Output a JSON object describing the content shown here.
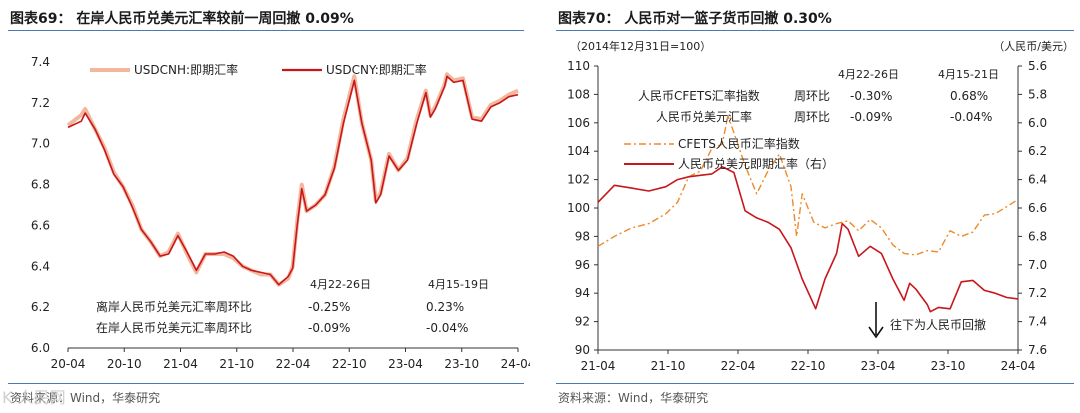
{
  "left": {
    "title": "图表69：  在岸人民币兑美元汇率较前一周回撤 0.09%",
    "source": "资料来源：Wind，华泰研究",
    "chart_data": {
      "type": "line",
      "x_ticks": [
        "20-04",
        "20-10",
        "21-04",
        "21-10",
        "22-04",
        "22-10",
        "23-04",
        "23-10",
        "24-04"
      ],
      "ylim": [
        6.0,
        7.4
      ],
      "y_ticks": [
        "6.0",
        "6.2",
        "6.4",
        "6.6",
        "6.8",
        "7.0",
        "7.2",
        "7.4"
      ],
      "grid": false,
      "legend": "top",
      "x_date_range": [
        "2020-04-01",
        "2024-04-30"
      ],
      "series": [
        {
          "name": "USDCNH:即期汇率",
          "color": "#f2b79c",
          "points": [
            [
              "2020-04-01",
              7.09
            ],
            [
              "2020-05-15",
              7.14
            ],
            [
              "2020-05-28",
              7.17
            ],
            [
              "2020-06-30",
              7.07
            ],
            [
              "2020-07-31",
              6.98
            ],
            [
              "2020-08-31",
              6.86
            ],
            [
              "2020-09-30",
              6.79
            ],
            [
              "2020-10-31",
              6.7
            ],
            [
              "2020-11-30",
              6.58
            ],
            [
              "2020-12-31",
              6.52
            ],
            [
              "2021-01-31",
              6.45
            ],
            [
              "2021-02-28",
              6.47
            ],
            [
              "2021-03-31",
              6.56
            ],
            [
              "2021-04-30",
              6.46
            ],
            [
              "2021-05-31",
              6.37
            ],
            [
              "2021-06-30",
              6.46
            ],
            [
              "2021-07-31",
              6.46
            ],
            [
              "2021-08-31",
              6.46
            ],
            [
              "2021-09-30",
              6.44
            ],
            [
              "2021-10-31",
              6.4
            ],
            [
              "2021-11-30",
              6.38
            ],
            [
              "2021-12-31",
              6.36
            ],
            [
              "2022-01-31",
              6.36
            ],
            [
              "2022-02-28",
              6.31
            ],
            [
              "2022-03-31",
              6.34
            ],
            [
              "2022-04-15",
              6.4
            ],
            [
              "2022-04-30",
              6.62
            ],
            [
              "2022-05-15",
              6.8
            ],
            [
              "2022-05-31",
              6.67
            ],
            [
              "2022-06-30",
              6.7
            ],
            [
              "2022-07-31",
              6.75
            ],
            [
              "2022-08-31",
              6.89
            ],
            [
              "2022-09-30",
              7.12
            ],
            [
              "2022-10-31",
              7.3
            ],
            [
              "2022-11-05",
              7.33
            ],
            [
              "2022-11-30",
              7.1
            ],
            [
              "2022-12-31",
              6.92
            ],
            [
              "2023-01-15",
              6.72
            ],
            [
              "2023-01-31",
              6.76
            ],
            [
              "2023-02-28",
              6.95
            ],
            [
              "2023-03-31",
              6.87
            ],
            [
              "2023-04-30",
              6.93
            ],
            [
              "2023-05-31",
              7.12
            ],
            [
              "2023-06-30",
              7.26
            ],
            [
              "2023-07-15",
              7.14
            ],
            [
              "2023-07-31",
              7.18
            ],
            [
              "2023-08-31",
              7.29
            ],
            [
              "2023-09-08",
              7.34
            ],
            [
              "2023-09-30",
              7.31
            ],
            [
              "2023-10-31",
              7.32
            ],
            [
              "2023-11-30",
              7.13
            ],
            [
              "2023-12-31",
              7.12
            ],
            [
              "2024-01-31",
              7.19
            ],
            [
              "2024-02-29",
              7.21
            ],
            [
              "2024-03-31",
              7.24
            ],
            [
              "2024-04-30",
              7.26
            ]
          ]
        },
        {
          "name": "USDCNY:即期汇率",
          "color": "#c8161d",
          "points": [
            [
              "2020-04-01",
              7.08
            ],
            [
              "2020-05-15",
              7.11
            ],
            [
              "2020-05-28",
              7.15
            ],
            [
              "2020-06-30",
              7.07
            ],
            [
              "2020-07-31",
              6.97
            ],
            [
              "2020-08-31",
              6.85
            ],
            [
              "2020-09-30",
              6.79
            ],
            [
              "2020-10-31",
              6.69
            ],
            [
              "2020-11-30",
              6.58
            ],
            [
              "2020-12-31",
              6.52
            ],
            [
              "2021-01-31",
              6.45
            ],
            [
              "2021-02-28",
              6.46
            ],
            [
              "2021-03-31",
              6.55
            ],
            [
              "2021-04-30",
              6.47
            ],
            [
              "2021-05-31",
              6.38
            ],
            [
              "2021-06-30",
              6.46
            ],
            [
              "2021-07-31",
              6.46
            ],
            [
              "2021-08-31",
              6.47
            ],
            [
              "2021-09-30",
              6.45
            ],
            [
              "2021-10-31",
              6.4
            ],
            [
              "2021-11-30",
              6.38
            ],
            [
              "2021-12-31",
              6.37
            ],
            [
              "2022-01-31",
              6.36
            ],
            [
              "2022-02-28",
              6.31
            ],
            [
              "2022-03-31",
              6.35
            ],
            [
              "2022-04-15",
              6.39
            ],
            [
              "2022-04-30",
              6.6
            ],
            [
              "2022-05-15",
              6.78
            ],
            [
              "2022-05-31",
              6.67
            ],
            [
              "2022-06-30",
              6.7
            ],
            [
              "2022-07-31",
              6.75
            ],
            [
              "2022-08-31",
              6.88
            ],
            [
              "2022-09-30",
              7.1
            ],
            [
              "2022-10-31",
              7.28
            ],
            [
              "2022-11-05",
              7.31
            ],
            [
              "2022-11-30",
              7.1
            ],
            [
              "2022-12-31",
              6.92
            ],
            [
              "2023-01-15",
              6.71
            ],
            [
              "2023-01-31",
              6.75
            ],
            [
              "2023-02-28",
              6.94
            ],
            [
              "2023-03-31",
              6.87
            ],
            [
              "2023-04-30",
              6.92
            ],
            [
              "2023-05-31",
              7.1
            ],
            [
              "2023-06-30",
              7.25
            ],
            [
              "2023-07-15",
              7.13
            ],
            [
              "2023-07-31",
              7.17
            ],
            [
              "2023-08-31",
              7.28
            ],
            [
              "2023-09-08",
              7.33
            ],
            [
              "2023-09-30",
              7.3
            ],
            [
              "2023-10-31",
              7.31
            ],
            [
              "2023-11-30",
              7.12
            ],
            [
              "2023-12-31",
              7.11
            ],
            [
              "2024-01-31",
              7.18
            ],
            [
              "2024-02-29",
              7.2
            ],
            [
              "2024-03-31",
              7.23
            ],
            [
              "2024-04-30",
              7.24
            ]
          ]
        }
      ],
      "table": {
        "col_headers": [
          "4月22-26日",
          "4月15-19日"
        ],
        "rows": [
          {
            "label": "离岸人民币兑美元汇率周环比",
            "values": [
              "-0.25%",
              "0.23%"
            ]
          },
          {
            "label": "在岸人民币兑美元汇率周环比",
            "values": [
              "-0.09%",
              "-0.04%"
            ]
          }
        ]
      }
    }
  },
  "right": {
    "title": "图表70：  人民币对一篮子货币回撤 0.30%",
    "source": "资料来源：Wind，华泰研究",
    "chart_data": {
      "type": "line",
      "left_note": "（2014年12月31日=100）",
      "right_note": "（人民币/美元）",
      "x_ticks": [
        "21-04",
        "21-10",
        "22-04",
        "22-10",
        "23-04",
        "23-10",
        "24-04"
      ],
      "x_date_range": [
        "2021-04-01",
        "2024-04-30"
      ],
      "y_left": {
        "range": [
          90,
          110
        ],
        "ticks": [
          "90",
          "92",
          "94",
          "96",
          "98",
          "100",
          "102",
          "104",
          "106",
          "108",
          "110"
        ]
      },
      "y_right": {
        "range": [
          5.6,
          7.6
        ],
        "inverted": true,
        "ticks": [
          "5.6",
          "5.8",
          "6.0",
          "6.2",
          "6.4",
          "6.6",
          "6.8",
          "7.0",
          "7.2",
          "7.4",
          "7.6"
        ]
      },
      "grid": false,
      "series": [
        {
          "name": "CFETS人民币汇率指数",
          "axis": "left",
          "style": "dashdot",
          "color": "#ee8a2a",
          "points": [
            [
              "2021-04-01",
              97.3
            ],
            [
              "2021-05-15",
              98.0
            ],
            [
              "2021-06-30",
              98.6
            ],
            [
              "2021-08-15",
              98.9
            ],
            [
              "2021-09-30",
              99.6
            ],
            [
              "2021-10-31",
              100.4
            ],
            [
              "2021-11-30",
              102.2
            ],
            [
              "2021-12-31",
              102.6
            ],
            [
              "2022-01-31",
              104.2
            ],
            [
              "2022-02-28",
              104.5
            ],
            [
              "2022-03-15",
              106.5
            ],
            [
              "2022-03-31",
              105.3
            ],
            [
              "2022-04-30",
              103.0
            ],
            [
              "2022-05-31",
              101.0
            ],
            [
              "2022-06-30",
              102.6
            ],
            [
              "2022-07-31",
              103.8
            ],
            [
              "2022-08-31",
              101.5
            ],
            [
              "2022-09-15",
              98.0
            ],
            [
              "2022-09-30",
              101.0
            ],
            [
              "2022-10-31",
              99.0
            ],
            [
              "2022-11-30",
              98.6
            ],
            [
              "2022-12-31",
              98.9
            ],
            [
              "2023-01-31",
              99.1
            ],
            [
              "2023-02-28",
              98.4
            ],
            [
              "2023-03-31",
              99.2
            ],
            [
              "2023-04-30",
              98.6
            ],
            [
              "2023-05-31",
              97.4
            ],
            [
              "2023-06-30",
              96.8
            ],
            [
              "2023-07-31",
              96.7
            ],
            [
              "2023-08-31",
              97.0
            ],
            [
              "2023-09-30",
              96.9
            ],
            [
              "2023-10-31",
              98.4
            ],
            [
              "2023-11-30",
              98.0
            ],
            [
              "2023-12-31",
              98.3
            ],
            [
              "2024-01-31",
              99.5
            ],
            [
              "2024-02-29",
              99.6
            ],
            [
              "2024-03-31",
              100.1
            ],
            [
              "2024-04-30",
              100.6
            ]
          ]
        },
        {
          "name": "人民币兑美元即期汇率（右）",
          "axis": "right",
          "style": "solid",
          "color": "#c8161d",
          "points": [
            [
              "2021-04-01",
              6.56
            ],
            [
              "2021-05-15",
              6.44
            ],
            [
              "2021-06-30",
              6.46
            ],
            [
              "2021-08-15",
              6.48
            ],
            [
              "2021-09-30",
              6.45
            ],
            [
              "2021-10-31",
              6.4
            ],
            [
              "2021-11-30",
              6.38
            ],
            [
              "2021-12-31",
              6.37
            ],
            [
              "2022-01-31",
              6.36
            ],
            [
              "2022-02-28",
              6.31
            ],
            [
              "2022-03-31",
              6.35
            ],
            [
              "2022-04-30",
              6.62
            ],
            [
              "2022-05-31",
              6.67
            ],
            [
              "2022-06-30",
              6.7
            ],
            [
              "2022-07-31",
              6.75
            ],
            [
              "2022-08-31",
              6.88
            ],
            [
              "2022-09-30",
              7.1
            ],
            [
              "2022-10-31",
              7.28
            ],
            [
              "2022-11-05",
              7.31
            ],
            [
              "2022-11-30",
              7.1
            ],
            [
              "2022-12-31",
              6.92
            ],
            [
              "2023-01-15",
              6.71
            ],
            [
              "2023-01-31",
              6.75
            ],
            [
              "2023-02-28",
              6.94
            ],
            [
              "2023-03-31",
              6.87
            ],
            [
              "2023-04-30",
              6.92
            ],
            [
              "2023-05-31",
              7.1
            ],
            [
              "2023-06-30",
              7.25
            ],
            [
              "2023-07-15",
              7.13
            ],
            [
              "2023-07-31",
              7.17
            ],
            [
              "2023-08-31",
              7.28
            ],
            [
              "2023-09-08",
              7.33
            ],
            [
              "2023-09-30",
              7.3
            ],
            [
              "2023-10-31",
              7.31
            ],
            [
              "2023-11-30",
              7.12
            ],
            [
              "2023-12-31",
              7.11
            ],
            [
              "2024-01-31",
              7.18
            ],
            [
              "2024-02-29",
              7.2
            ],
            [
              "2024-03-31",
              7.23
            ],
            [
              "2024-04-30",
              7.24
            ]
          ]
        }
      ],
      "table": {
        "col_headers": [
          "4月22-26日",
          "4月15-21日"
        ],
        "rows": [
          {
            "label": "人民币CFETS汇率指数",
            "sub": "周环比",
            "values": [
              "-0.30%",
              "0.68%"
            ]
          },
          {
            "label": "人民币兑美元汇率",
            "sub": "周环比",
            "values": [
              "-0.09%",
              "-0.04%"
            ]
          }
        ]
      },
      "annotation": "往下为人民币回撤"
    }
  },
  "watermark": "K 人民网"
}
